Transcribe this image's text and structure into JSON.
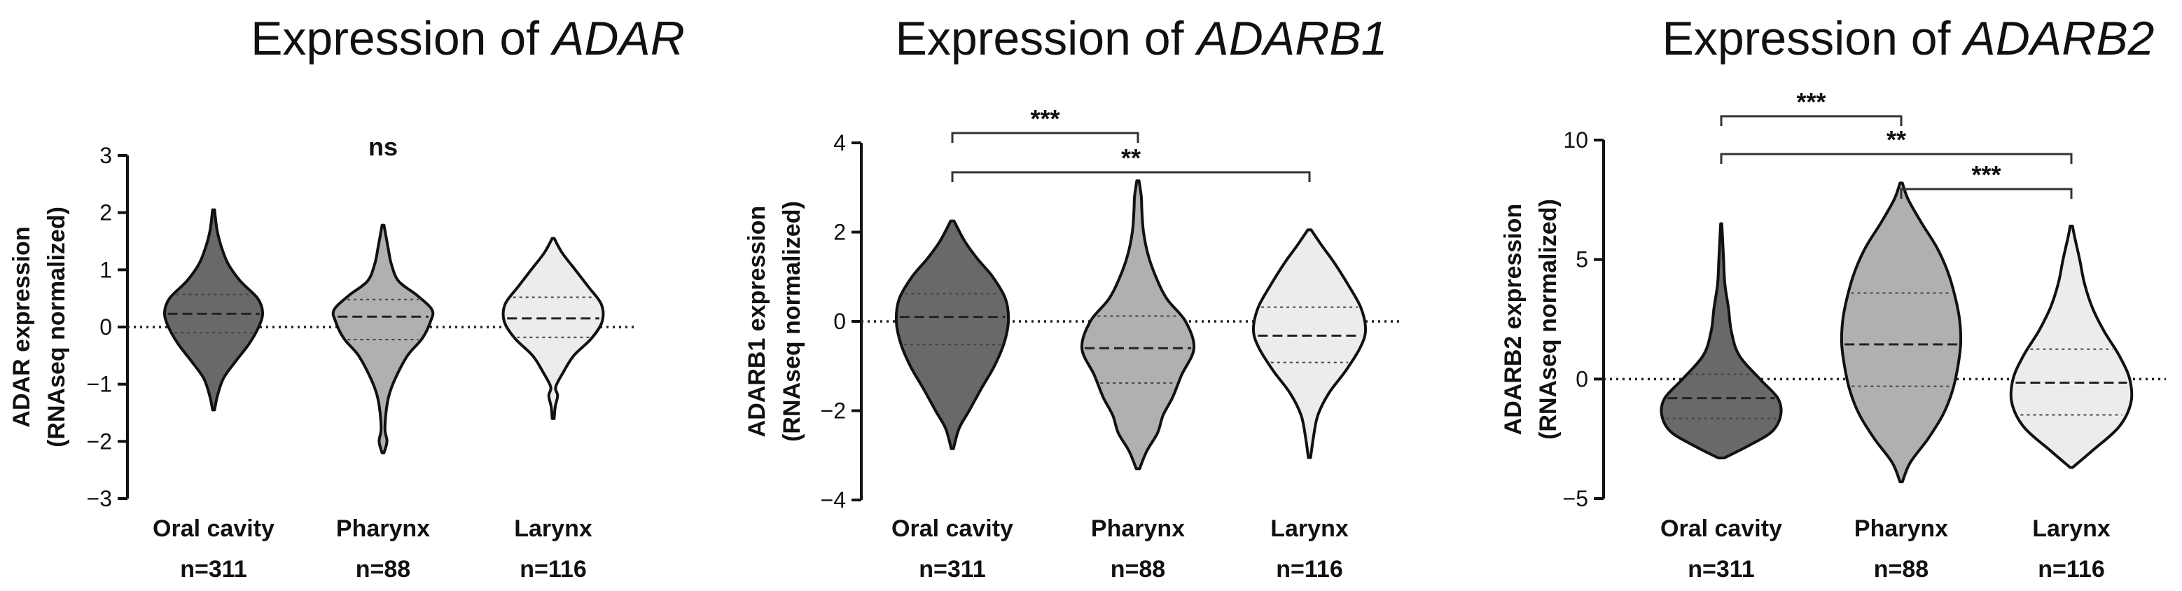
{
  "chart_data": [
    {
      "type": "violin",
      "title_prefix": "Expression of ",
      "gene": "ADAR",
      "ylabel_line1": "ADAR expression",
      "ylabel_line2": "(RNAseq normalized)",
      "ylim": [
        -3,
        3
      ],
      "yticks": [
        "3",
        "2",
        "1",
        "0",
        "−1",
        "−2",
        "−3"
      ],
      "ytick_values": [
        3,
        2,
        1,
        0,
        -1,
        -2,
        -3
      ],
      "categories": [
        "Oral cavity",
        "Pharynx",
        "Larynx"
      ],
      "n_labels": [
        "n=311",
        "n=88",
        "n=116"
      ],
      "fills": [
        "#696969",
        "#b0b0b0",
        "#ececec"
      ],
      "significance": [
        {
          "label": "ns",
          "between": [],
          "bracket": false
        }
      ],
      "violins": [
        {
          "min": -1.45,
          "max": 2.05,
          "q1": -0.1,
          "median": 0.23,
          "q3": 0.57,
          "density": [
            [
              -1.45,
              0.02
            ],
            [
              -1.2,
              0.08
            ],
            [
              -0.9,
              0.2
            ],
            [
              -0.6,
              0.45
            ],
            [
              -0.3,
              0.72
            ],
            [
              0.0,
              0.92
            ],
            [
              0.25,
              1.0
            ],
            [
              0.5,
              0.9
            ],
            [
              0.8,
              0.55
            ],
            [
              1.1,
              0.3
            ],
            [
              1.4,
              0.16
            ],
            [
              1.7,
              0.07
            ],
            [
              2.05,
              0.02
            ]
          ]
        },
        {
          "min": -2.2,
          "max": 1.78,
          "q1": -0.22,
          "median": 0.18,
          "q3": 0.48,
          "density": [
            [
              -2.2,
              0.02
            ],
            [
              -2.0,
              0.08
            ],
            [
              -1.8,
              0.04
            ],
            [
              -1.5,
              0.06
            ],
            [
              -1.2,
              0.12
            ],
            [
              -0.9,
              0.25
            ],
            [
              -0.5,
              0.5
            ],
            [
              -0.2,
              0.8
            ],
            [
              0.1,
              0.97
            ],
            [
              0.3,
              1.0
            ],
            [
              0.55,
              0.7
            ],
            [
              0.8,
              0.32
            ],
            [
              1.1,
              0.17
            ],
            [
              1.4,
              0.1
            ],
            [
              1.78,
              0.02
            ]
          ]
        },
        {
          "min": -1.6,
          "max": 1.55,
          "q1": -0.18,
          "median": 0.15,
          "q3": 0.52,
          "density": [
            [
              -1.6,
              0.02
            ],
            [
              -1.4,
              0.04
            ],
            [
              -1.2,
              0.09
            ],
            [
              -1.05,
              0.05
            ],
            [
              -0.8,
              0.2
            ],
            [
              -0.5,
              0.42
            ],
            [
              -0.2,
              0.78
            ],
            [
              0.1,
              1.0
            ],
            [
              0.4,
              0.98
            ],
            [
              0.7,
              0.72
            ],
            [
              1.0,
              0.45
            ],
            [
              1.3,
              0.18
            ],
            [
              1.55,
              0.02
            ]
          ]
        }
      ]
    },
    {
      "type": "violin",
      "title_prefix": "Expression of ",
      "gene": "ADARB1",
      "ylabel_line1": "ADARB1 expression",
      "ylabel_line2": "(RNAseq normalized)",
      "ylim": [
        -4,
        4
      ],
      "yticks": [
        "4",
        "2",
        "0",
        "−2",
        "−4"
      ],
      "ytick_values": [
        4,
        2,
        0,
        -2,
        -4
      ],
      "categories": [
        "Oral cavity",
        "Pharynx",
        "Larynx"
      ],
      "n_labels": [
        "n=311",
        "n=88",
        "n=116"
      ],
      "fills": [
        "#696969",
        "#b0b0b0",
        "#ececec"
      ],
      "significance": [
        {
          "label": "***",
          "between": [
            0,
            1
          ],
          "bracket": true
        },
        {
          "label": "**",
          "between": [
            0,
            2
          ],
          "bracket": true
        }
      ],
      "violins": [
        {
          "min": -2.85,
          "max": 2.25,
          "q1": -0.52,
          "median": 0.1,
          "q3": 0.62,
          "density": [
            [
              -2.85,
              0.02
            ],
            [
              -2.4,
              0.12
            ],
            [
              -2.0,
              0.3
            ],
            [
              -1.5,
              0.52
            ],
            [
              -1.0,
              0.75
            ],
            [
              -0.5,
              0.92
            ],
            [
              0.0,
              1.0
            ],
            [
              0.5,
              0.95
            ],
            [
              1.0,
              0.72
            ],
            [
              1.4,
              0.45
            ],
            [
              1.8,
              0.22
            ],
            [
              2.25,
              0.03
            ]
          ]
        },
        {
          "min": -3.3,
          "max": 3.15,
          "q1": -1.38,
          "median": -0.6,
          "q3": 0.12,
          "density": [
            [
              -3.3,
              0.03
            ],
            [
              -2.9,
              0.16
            ],
            [
              -2.5,
              0.35
            ],
            [
              -2.1,
              0.45
            ],
            [
              -1.7,
              0.62
            ],
            [
              -1.2,
              0.78
            ],
            [
              -0.6,
              1.0
            ],
            [
              0.0,
              0.85
            ],
            [
              0.5,
              0.52
            ],
            [
              1.0,
              0.32
            ],
            [
              1.5,
              0.18
            ],
            [
              2.0,
              0.1
            ],
            [
              2.5,
              0.07
            ],
            [
              2.8,
              0.06
            ],
            [
              3.15,
              0.02
            ]
          ]
        },
        {
          "min": -3.05,
          "max": 2.05,
          "q1": -0.92,
          "median": -0.32,
          "q3": 0.32,
          "density": [
            [
              -3.05,
              0.02
            ],
            [
              -2.6,
              0.07
            ],
            [
              -2.1,
              0.15
            ],
            [
              -1.6,
              0.35
            ],
            [
              -1.1,
              0.65
            ],
            [
              -0.6,
              0.9
            ],
            [
              -0.2,
              1.0
            ],
            [
              0.3,
              0.92
            ],
            [
              0.8,
              0.7
            ],
            [
              1.3,
              0.45
            ],
            [
              1.7,
              0.22
            ],
            [
              2.05,
              0.03
            ]
          ]
        }
      ]
    },
    {
      "type": "violin",
      "title_prefix": "Expression of ",
      "gene": "ADARB2",
      "ylabel_line1": "ADARB2 expression",
      "ylabel_line2": "(RNAseq normalized)",
      "ylim": [
        -5,
        10
      ],
      "yticks": [
        "10",
        "5",
        "0",
        "−5"
      ],
      "ytick_values": [
        10,
        5,
        0,
        -5
      ],
      "categories": [
        "Oral cavity",
        "Pharynx",
        "Larynx"
      ],
      "n_labels": [
        "n=311",
        "n=88",
        "n=116"
      ],
      "fills": [
        "#696969",
        "#b0b0b0",
        "#ececec"
      ],
      "significance": [
        {
          "label": "***",
          "between": [
            0,
            1
          ],
          "bracket": true
        },
        {
          "label": "**",
          "between": [
            0,
            2
          ],
          "bracket": true
        },
        {
          "label": "***",
          "between": [
            1,
            2
          ],
          "bracket": true
        }
      ],
      "violins": [
        {
          "min": -3.3,
          "max": 6.5,
          "q1": -1.65,
          "median": -0.8,
          "q3": 0.2,
          "density": [
            [
              -3.3,
              0.05
            ],
            [
              -2.8,
              0.45
            ],
            [
              -2.2,
              0.85
            ],
            [
              -1.5,
              1.0
            ],
            [
              -0.8,
              0.95
            ],
            [
              0.0,
              0.65
            ],
            [
              1.0,
              0.3
            ],
            [
              2.0,
              0.17
            ],
            [
              3.0,
              0.12
            ],
            [
              4.0,
              0.06
            ],
            [
              5.0,
              0.04
            ],
            [
              6.0,
              0.02
            ],
            [
              6.5,
              0.01
            ]
          ]
        },
        {
          "min": -4.3,
          "max": 8.2,
          "q1": -0.3,
          "median": 1.45,
          "q3": 3.6,
          "density": [
            [
              -4.3,
              0.02
            ],
            [
              -3.5,
              0.15
            ],
            [
              -2.5,
              0.45
            ],
            [
              -1.5,
              0.7
            ],
            [
              -0.5,
              0.86
            ],
            [
              0.5,
              0.95
            ],
            [
              1.5,
              1.0
            ],
            [
              2.5,
              0.98
            ],
            [
              3.5,
              0.9
            ],
            [
              4.5,
              0.78
            ],
            [
              5.5,
              0.6
            ],
            [
              6.5,
              0.35
            ],
            [
              7.5,
              0.12
            ],
            [
              8.2,
              0.02
            ]
          ]
        },
        {
          "min": -3.7,
          "max": 6.4,
          "q1": -1.5,
          "median": -0.15,
          "q3": 1.25,
          "density": [
            [
              -3.7,
              0.02
            ],
            [
              -3.0,
              0.35
            ],
            [
              -2.0,
              0.8
            ],
            [
              -1.0,
              1.0
            ],
            [
              0.0,
              0.98
            ],
            [
              1.0,
              0.8
            ],
            [
              2.0,
              0.55
            ],
            [
              3.0,
              0.35
            ],
            [
              4.0,
              0.22
            ],
            [
              5.0,
              0.14
            ],
            [
              6.0,
              0.05
            ],
            [
              6.4,
              0.02
            ]
          ]
        }
      ]
    }
  ]
}
